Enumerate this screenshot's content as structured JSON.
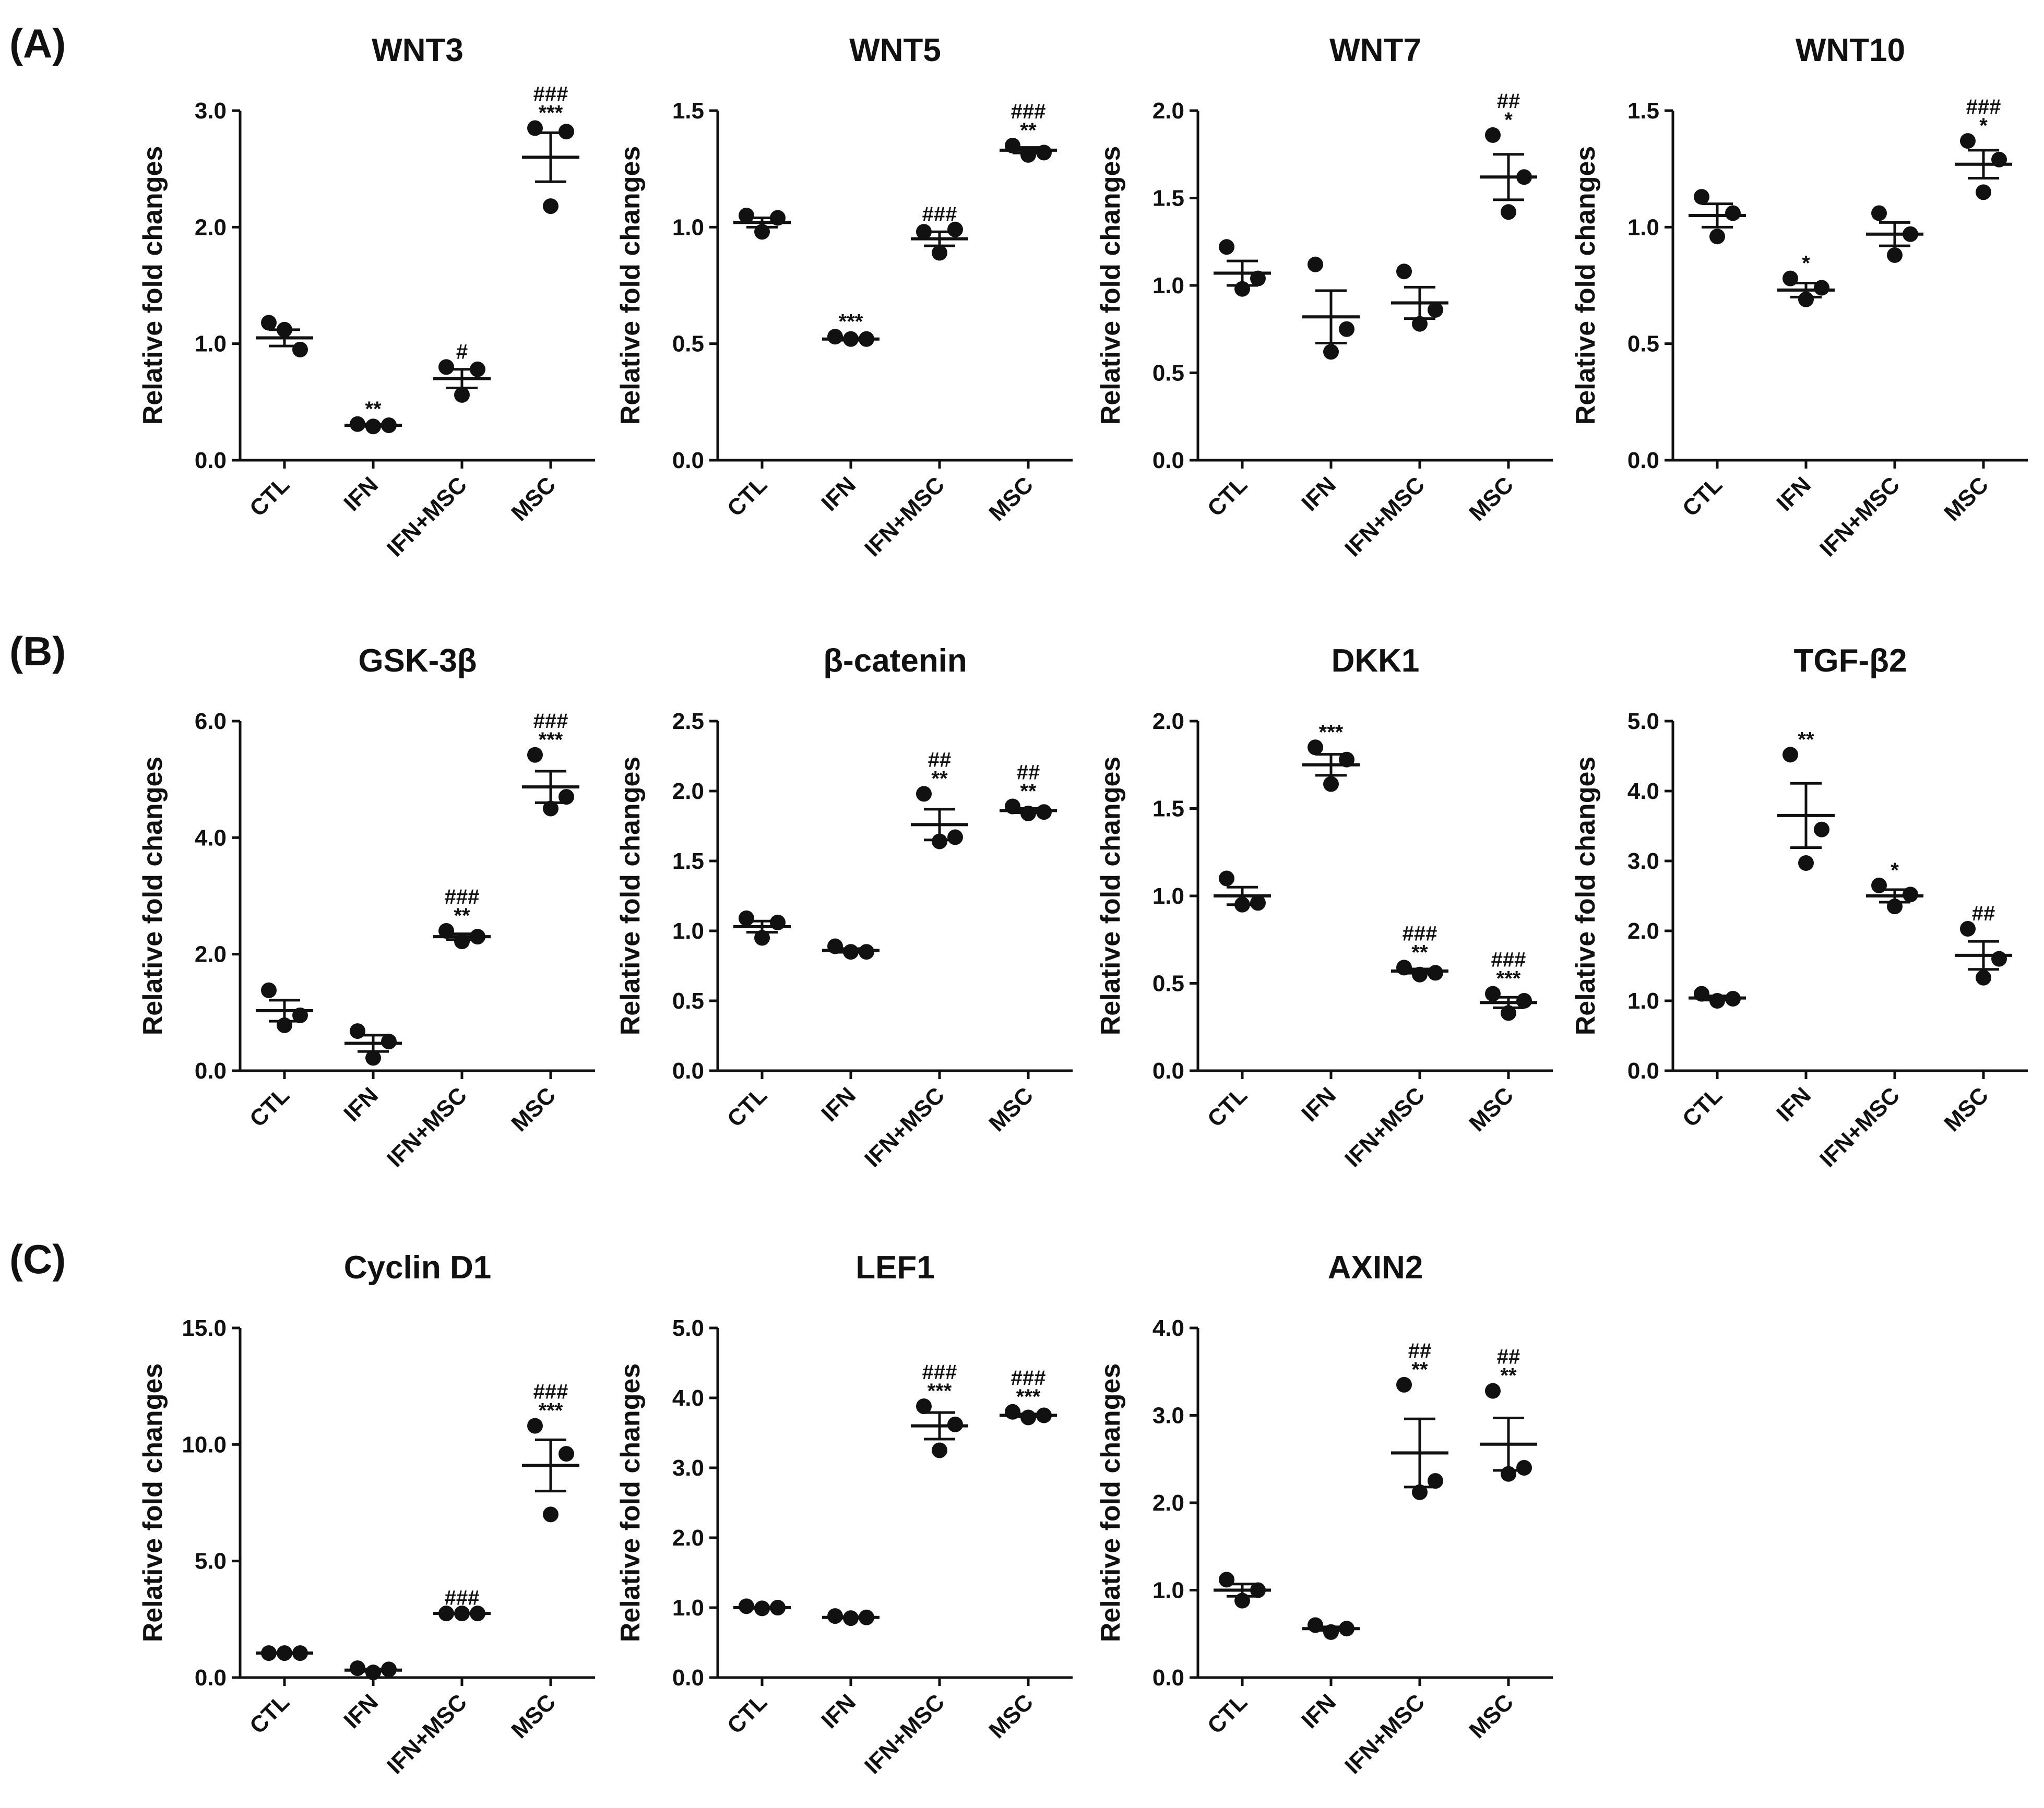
{
  "panel_labels": [
    "(A)",
    "(B)",
    "(C)"
  ],
  "chart_data": [
    {
      "type": "scatter",
      "panel": "(A)",
      "title": "WNT3",
      "ylabel": "Relative fold changes",
      "ylim": [
        0,
        3.0
      ],
      "yticks": [
        "0.0",
        "1.0",
        "2.0",
        "3.0"
      ],
      "categories": [
        "CTL",
        "IFN",
        "IFN+MSC",
        "MSC"
      ],
      "points": [
        [
          1.18,
          1.12,
          0.95
        ],
        [
          0.31,
          0.29,
          0.3
        ],
        [
          0.8,
          0.56,
          0.78
        ],
        [
          2.85,
          2.18,
          2.82
        ]
      ],
      "mean": [
        1.05,
        0.3,
        0.7,
        2.6
      ],
      "sem": [
        0.07,
        0.01,
        0.08,
        0.21
      ],
      "significance": [
        "",
        "**",
        "#",
        "###\n***"
      ]
    },
    {
      "type": "scatter",
      "panel": "(A)",
      "title": "WNT5",
      "ylabel": "Relative fold changes",
      "ylim": [
        0,
        1.5
      ],
      "yticks": [
        "0.0",
        "0.5",
        "1.0",
        "1.5"
      ],
      "categories": [
        "CTL",
        "IFN",
        "IFN+MSC",
        "MSC"
      ],
      "points": [
        [
          1.05,
          0.98,
          1.04
        ],
        [
          0.53,
          0.52,
          0.52
        ],
        [
          0.98,
          0.89,
          0.99
        ],
        [
          1.35,
          1.31,
          1.32
        ]
      ],
      "mean": [
        1.02,
        0.52,
        0.95,
        1.33
      ],
      "sem": [
        0.02,
        0.005,
        0.03,
        0.012
      ],
      "significance": [
        "",
        "***",
        "###",
        "###\n**"
      ]
    },
    {
      "type": "scatter",
      "panel": "(A)",
      "title": "WNT7",
      "ylabel": "Relative fold changes",
      "ylim": [
        0,
        2.0
      ],
      "yticks": [
        "0.0",
        "0.5",
        "1.0",
        "1.5",
        "2.0"
      ],
      "categories": [
        "CTL",
        "IFN",
        "IFN+MSC",
        "MSC"
      ],
      "points": [
        [
          1.22,
          0.98,
          1.04
        ],
        [
          1.12,
          0.62,
          0.75
        ],
        [
          1.08,
          0.78,
          0.86
        ],
        [
          1.86,
          1.42,
          1.62
        ]
      ],
      "mean": [
        1.07,
        0.82,
        0.9,
        1.62
      ],
      "sem": [
        0.07,
        0.15,
        0.09,
        0.13
      ],
      "significance": [
        "",
        "",
        "",
        "##\n*"
      ]
    },
    {
      "type": "scatter",
      "panel": "(A)",
      "title": "WNT10",
      "ylabel": "Relative fold changes",
      "ylim": [
        0,
        1.5
      ],
      "yticks": [
        "0.0",
        "0.5",
        "1.0",
        "1.5"
      ],
      "categories": [
        "CTL",
        "IFN",
        "IFN+MSC",
        "MSC"
      ],
      "points": [
        [
          1.13,
          0.96,
          1.06
        ],
        [
          0.78,
          0.69,
          0.74
        ],
        [
          1.06,
          0.88,
          0.97
        ],
        [
          1.37,
          1.15,
          1.29
        ]
      ],
      "mean": [
        1.05,
        0.73,
        0.97,
        1.27
      ],
      "sem": [
        0.05,
        0.03,
        0.05,
        0.06
      ],
      "significance": [
        "",
        "*",
        "",
        "###\n*"
      ]
    },
    {
      "type": "scatter",
      "panel": "(B)",
      "title": "GSK-3β",
      "ylabel": "Relative fold changes",
      "ylim": [
        0,
        6.0
      ],
      "yticks": [
        "0.0",
        "2.0",
        "4.0",
        "6.0"
      ],
      "categories": [
        "CTL",
        "IFN",
        "IFN+MSC",
        "MSC"
      ],
      "points": [
        [
          1.38,
          0.78,
          0.95
        ],
        [
          0.68,
          0.22,
          0.5
        ],
        [
          2.4,
          2.22,
          2.3
        ],
        [
          5.42,
          4.5,
          4.7
        ]
      ],
      "mean": [
        1.03,
        0.47,
        2.3,
        4.87
      ],
      "sem": [
        0.18,
        0.14,
        0.05,
        0.27
      ],
      "significance": [
        "",
        "",
        "###\n**",
        "###\n***"
      ]
    },
    {
      "type": "scatter",
      "panel": "(B)",
      "title": "β-catenin",
      "ylabel": "Relative fold changes",
      "ylim": [
        0,
        2.5
      ],
      "yticks": [
        "0.0",
        "0.5",
        "1.0",
        "1.5",
        "2.0",
        "2.5"
      ],
      "categories": [
        "CTL",
        "IFN",
        "IFN+MSC",
        "MSC"
      ],
      "points": [
        [
          1.09,
          0.95,
          1.06
        ],
        [
          0.89,
          0.85,
          0.85
        ],
        [
          1.98,
          1.64,
          1.67
        ],
        [
          1.89,
          1.84,
          1.85
        ]
      ],
      "mean": [
        1.03,
        0.86,
        1.76,
        1.86
      ],
      "sem": [
        0.04,
        0.013,
        0.11,
        0.015
      ],
      "significance": [
        "",
        "",
        "##\n**",
        "##\n**"
      ]
    },
    {
      "type": "scatter",
      "panel": "(B)",
      "title": "DKK1",
      "ylabel": "Relative fold changes",
      "ylim": [
        0,
        2.0
      ],
      "yticks": [
        "0.0",
        "0.5",
        "1.0",
        "1.5",
        "2.0"
      ],
      "categories": [
        "CTL",
        "IFN",
        "IFN+MSC",
        "MSC"
      ],
      "points": [
        [
          1.1,
          0.95,
          0.96
        ],
        [
          1.85,
          1.64,
          1.78
        ],
        [
          0.59,
          0.55,
          0.56
        ],
        [
          0.44,
          0.33,
          0.4
        ]
      ],
      "mean": [
        1.0,
        1.75,
        0.57,
        0.39
      ],
      "sem": [
        0.05,
        0.06,
        0.012,
        0.03
      ],
      "significance": [
        "",
        "***",
        "###\n**",
        "###\n***"
      ]
    },
    {
      "type": "scatter",
      "panel": "(B)",
      "title": "TGF-β2",
      "ylabel": "Relative fold changes",
      "ylim": [
        0,
        5.0
      ],
      "yticks": [
        "0.0",
        "1.0",
        "2.0",
        "3.0",
        "4.0",
        "5.0"
      ],
      "categories": [
        "CTL",
        "IFN",
        "IFN+MSC",
        "MSC"
      ],
      "points": [
        [
          1.1,
          1.0,
          1.03
        ],
        [
          4.52,
          2.97,
          3.45
        ],
        [
          2.65,
          2.35,
          2.52
        ],
        [
          2.03,
          1.33,
          1.6
        ]
      ],
      "mean": [
        1.04,
        3.65,
        2.5,
        1.65
      ],
      "sem": [
        0.03,
        0.46,
        0.09,
        0.2
      ],
      "significance": [
        "",
        "**",
        "*",
        "##"
      ]
    },
    {
      "type": "scatter",
      "panel": "(C)",
      "title": "Cyclin D1",
      "ylabel": "Relative fold changes",
      "ylim": [
        0,
        15.0
      ],
      "yticks": [
        "0.0",
        "5.0",
        "10.0",
        "15.0"
      ],
      "categories": [
        "CTL",
        "IFN",
        "IFN+MSC",
        "MSC"
      ],
      "points": [
        [
          1.05,
          1.05,
          1.05
        ],
        [
          0.4,
          0.22,
          0.35
        ],
        [
          2.75,
          2.75,
          2.75
        ],
        [
          10.8,
          7.0,
          9.6
        ]
      ],
      "mean": [
        1.05,
        0.32,
        2.75,
        9.1
      ],
      "sem": [
        0.01,
        0.05,
        0.01,
        1.1
      ],
      "significance": [
        "",
        "",
        "###",
        "###\n***"
      ]
    },
    {
      "type": "scatter",
      "panel": "(C)",
      "title": "LEF1",
      "ylabel": "Relative fold changes",
      "ylim": [
        0,
        5.0
      ],
      "yticks": [
        "0.0",
        "1.0",
        "2.0",
        "3.0",
        "4.0",
        "5.0"
      ],
      "categories": [
        "CTL",
        "IFN",
        "IFN+MSC",
        "MSC"
      ],
      "points": [
        [
          1.02,
          0.99,
          1.0
        ],
        [
          0.88,
          0.85,
          0.86
        ],
        [
          3.88,
          3.25,
          3.62
        ],
        [
          3.8,
          3.72,
          3.75
        ]
      ],
      "mean": [
        1.0,
        0.86,
        3.6,
        3.75
      ],
      "sem": [
        0.01,
        0.01,
        0.19,
        0.02
      ],
      "significance": [
        "",
        "",
        "###\n***",
        "###\n***"
      ]
    },
    {
      "type": "scatter",
      "panel": "(C)",
      "title": "AXIN2",
      "ylabel": "Relative fold changes",
      "ylim": [
        0,
        4.0
      ],
      "yticks": [
        "0.0",
        "1.0",
        "2.0",
        "3.0",
        "4.0"
      ],
      "categories": [
        "CTL",
        "IFN",
        "IFN+MSC",
        "MSC"
      ],
      "points": [
        [
          1.12,
          0.88,
          1.0
        ],
        [
          0.6,
          0.52,
          0.56
        ],
        [
          3.35,
          2.12,
          2.25
        ],
        [
          3.28,
          2.33,
          2.4
        ]
      ],
      "mean": [
        1.0,
        0.56,
        2.57,
        2.67
      ],
      "sem": [
        0.07,
        0.02,
        0.39,
        0.3
      ],
      "significance": [
        "",
        "",
        "##\n**",
        "##\n**"
      ]
    }
  ]
}
